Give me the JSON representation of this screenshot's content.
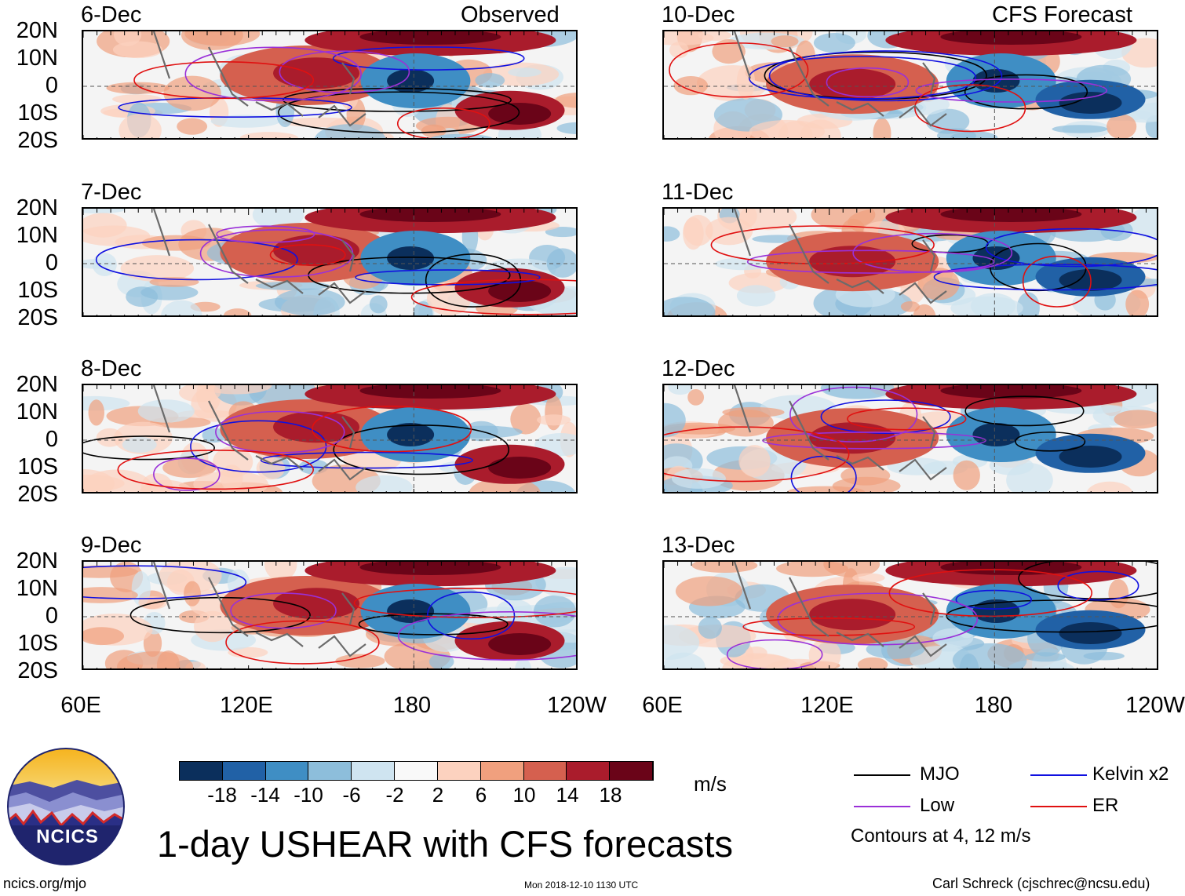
{
  "chart_data": {
    "type": "heatmap",
    "title": "1-day USHEAR with CFS forecasts",
    "variable": "USHEAR",
    "units": "m/s",
    "xrange": [
      "60E",
      "120W"
    ],
    "yrange": [
      "20S",
      "20N"
    ],
    "x_tick_labels": [
      "60E",
      "120E",
      "180",
      "120W"
    ],
    "y_tick_labels": [
      "20N",
      "10N",
      "0",
      "10S",
      "20S"
    ],
    "left_column_label": "Observed",
    "right_column_label": "CFS Forecast",
    "panels": [
      {
        "date": "6-Dec",
        "source": "observed"
      },
      {
        "date": "7-Dec",
        "source": "observed"
      },
      {
        "date": "8-Dec",
        "source": "observed"
      },
      {
        "date": "9-Dec",
        "source": "observed"
      },
      {
        "date": "10-Dec",
        "source": "forecast"
      },
      {
        "date": "11-Dec",
        "source": "forecast"
      },
      {
        "date": "12-Dec",
        "source": "forecast"
      },
      {
        "date": "13-Dec",
        "source": "forecast"
      }
    ],
    "colorbar": {
      "ticks": [
        "-18",
        "-14",
        "-10",
        "-6",
        "-2",
        "2",
        "6",
        "10",
        "14",
        "18"
      ],
      "colors": [
        "#0b2f5c",
        "#2161a6",
        "#3f8ec4",
        "#8dbedb",
        "#cfe4f0",
        "#f9f9f9",
        "#fcd2bf",
        "#f0a07e",
        "#d5604f",
        "#aa1c2c",
        "#6a0418"
      ]
    },
    "contour_legend": [
      {
        "label": "MJO",
        "color": "#000000"
      },
      {
        "label": "Kelvin x2",
        "color": "#1010e0"
      },
      {
        "label": "Low",
        "color": "#9a30d8"
      },
      {
        "label": "ER",
        "color": "#e01010"
      }
    ],
    "contour_note": "Contours at 4, 12 m/s"
  },
  "footer": {
    "org_logo_text": "NCICS",
    "url": "ncics.org/mjo",
    "timestamp": "Mon 2018-12-10 1130 UTC",
    "credit": "Carl Schreck (cjschrec@ncsu.edu)"
  }
}
